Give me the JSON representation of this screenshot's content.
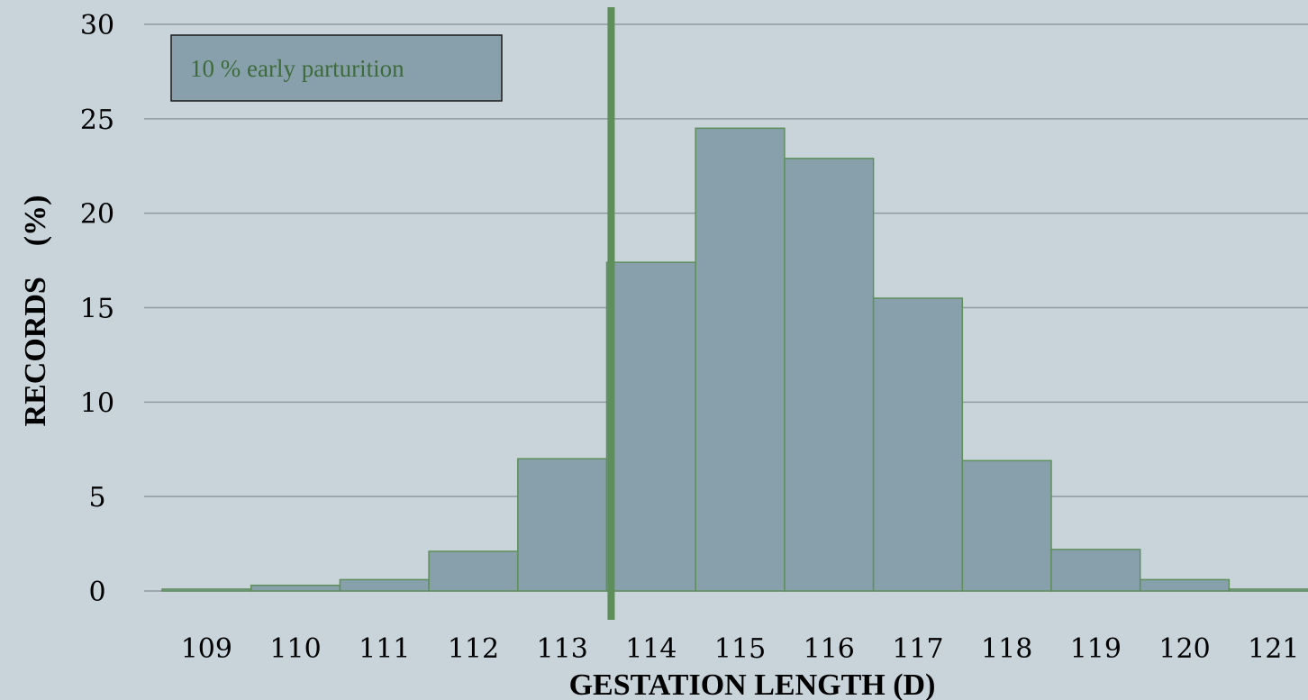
{
  "chart_data": {
    "type": "bar",
    "categories": [
      "109",
      "110",
      "111",
      "112",
      "113",
      "114",
      "115",
      "116",
      "117",
      "118",
      "119",
      "120",
      "121"
    ],
    "values": [
      0.1,
      0.3,
      0.6,
      2.1,
      7.0,
      17.4,
      24.5,
      22.9,
      15.5,
      6.9,
      2.2,
      0.6,
      0.1
    ],
    "xlabel": "GESTATION LENGTH (D)",
    "ylabel": "RECORDS    (%)",
    "ylim": [
      0,
      30
    ],
    "yticks": [
      "0",
      "5",
      "10",
      "15",
      "20",
      "25",
      "30"
    ],
    "grid": true,
    "reference_line": {
      "x": 113.55
    },
    "annotation": "10 % early parturition",
    "colors": {
      "background": "#c8d4da",
      "bar_fill": "#88a0ab",
      "bar_edge": "#5e8f5a",
      "reference_line": "#5e8f5a",
      "annotation_text": "#3e6b3c",
      "grid": "#8e9aa0"
    }
  }
}
